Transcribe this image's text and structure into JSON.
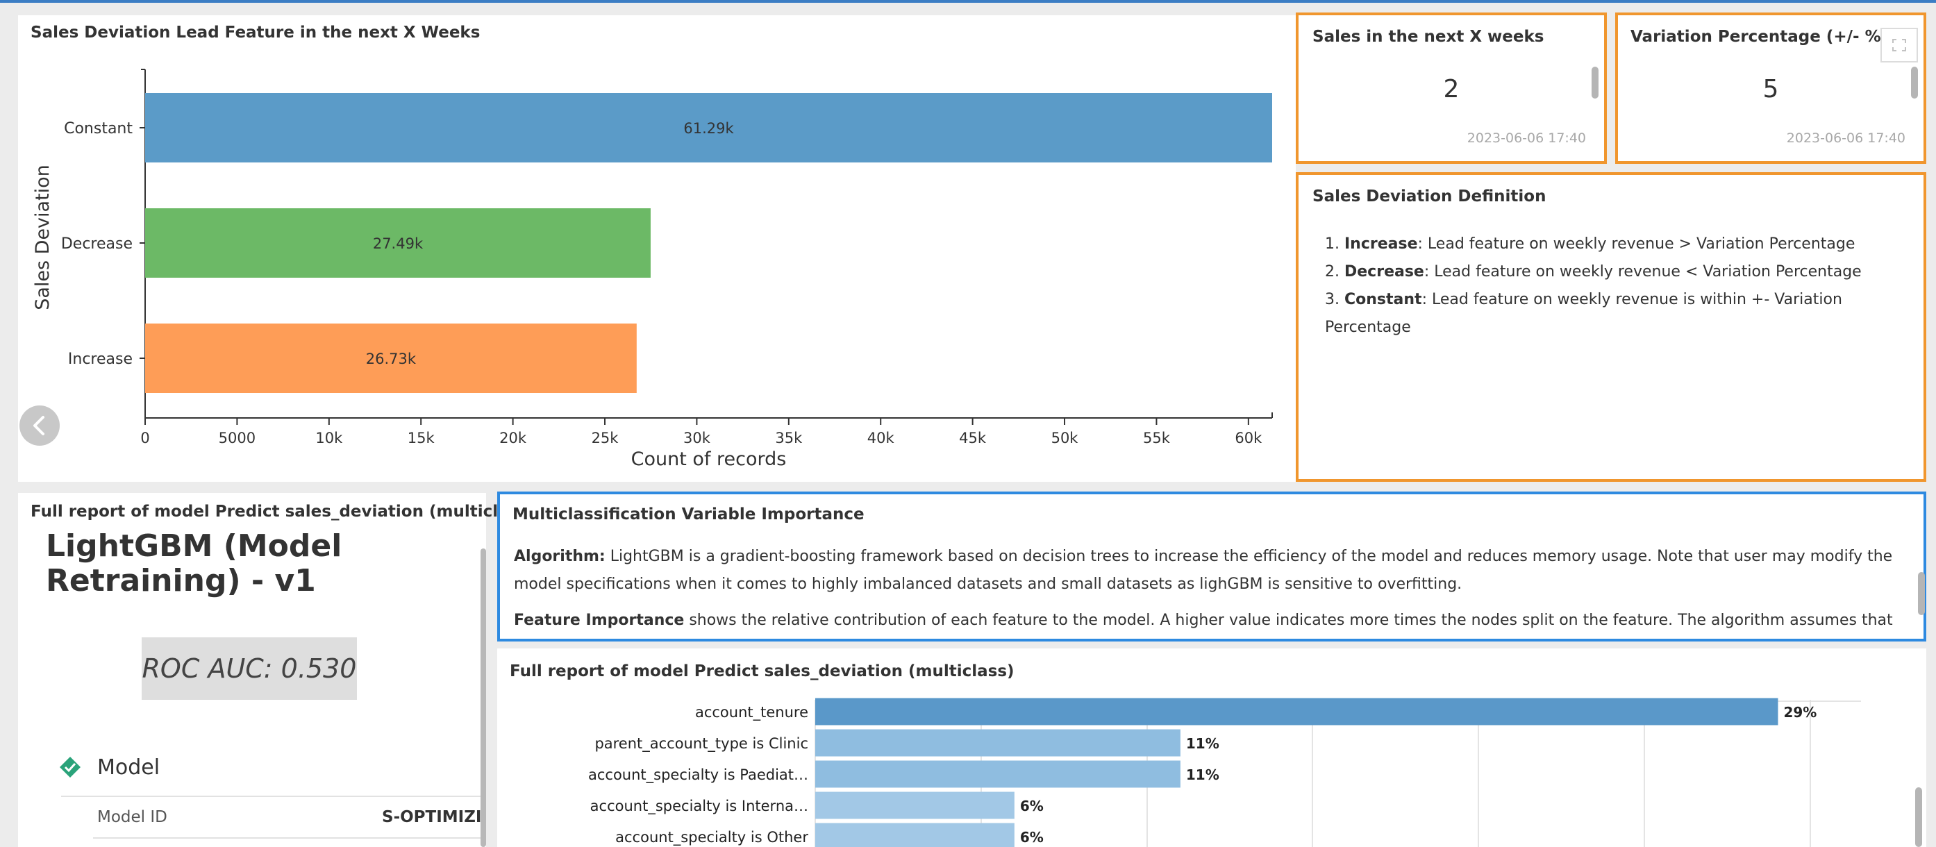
{
  "bar_panel": {
    "title": "Sales Deviation Lead Feature in the next X Weeks",
    "chart_data": {
      "type": "bar",
      "orientation": "horizontal",
      "categories": [
        "Constant",
        "Decrease",
        "Increase"
      ],
      "values": [
        61290,
        27490,
        26730
      ],
      "value_labels": [
        "61.29k",
        "27.49k",
        "26.73k"
      ],
      "colors": [
        "#5b9bc8",
        "#6cb966",
        "#fe9d57"
      ],
      "xlabel": "Count of records",
      "ylabel": "Sales Deviation",
      "xlim": [
        0,
        61290
      ],
      "xticks": [
        0,
        5000,
        10000,
        15000,
        20000,
        25000,
        30000,
        35000,
        40000,
        45000,
        50000,
        55000,
        60000
      ],
      "xtick_labels": [
        "0",
        "5000",
        "10k",
        "15k",
        "20k",
        "25k",
        "30k",
        "35k",
        "40k",
        "45k",
        "50k",
        "55k",
        "60k"
      ],
      "grid": false,
      "legend": "none"
    }
  },
  "metric_weeks": {
    "title": "Sales in the next X weeks",
    "value": "2",
    "timestamp": "2023-06-06 17:40"
  },
  "metric_variation": {
    "title": "Variation Percentage (+/- %)",
    "value": "5",
    "timestamp": "2023-06-06 17:40",
    "expand_icon": "expand-icon"
  },
  "definition": {
    "title": "Sales Deviation Definition",
    "items": [
      {
        "num": "1.",
        "term": "Increase",
        "text": ": Lead feature on weekly revenue > Variation Percentage"
      },
      {
        "num": "2.",
        "term": "Decrease",
        "text": ": Lead feature on weekly revenue < Variation Percentage"
      },
      {
        "num": "3.",
        "term": "Constant",
        "text": ": Lead feature on weekly revenue is within +- Variation Percentage"
      }
    ]
  },
  "report_left": {
    "title": "Full report of model Predict sales_deviation (multiclass)",
    "model_name": "LightGBM (Model Retraining) - v1",
    "roc": "ROC AUC: 0.530",
    "section": "Model",
    "section_icon": "model-icon",
    "model_id_label": "Model ID",
    "model_id_value": "S-OPTIMIZI"
  },
  "importance_text": {
    "title": "Multiclassification Variable Importance",
    "algorithm_label": "Algorithm:",
    "algorithm_text": " LightGBM is a gradient-boosting framework based on decision trees to increase the efficiency of the model and reduces memory usage. Note that user may modify the model specifications when it comes to highly imbalanced datasets and small datasets as lighGBM is sensitive to overfitting.",
    "feature_label": "Feature Importance",
    "feature_text": " shows the relative contribution of each feature to the model. A higher value indicates more times the nodes split on the feature. The algorithm assumes that the"
  },
  "importance_chart": {
    "title": "Full report of model Predict sales_deviation (multiclass)",
    "chart_data": {
      "type": "bar",
      "orientation": "horizontal",
      "categories": [
        "account_tenure",
        "parent_account_type is Clinic",
        "account_specialty is Paediat…",
        "account_specialty is Interna…",
        "account_specialty is Other"
      ],
      "values": [
        29,
        11,
        11,
        6,
        6
      ],
      "value_labels": [
        "29%",
        "11%",
        "11%",
        "6%",
        "6%"
      ],
      "xlim": [
        0,
        31.5
      ],
      "colors": [
        "#5a98c9",
        "#8fbde0",
        "#8fbde0",
        "#a2c8e6",
        "#a2c8e6"
      ],
      "grid": true,
      "legend": "none"
    }
  },
  "nav": {
    "prev_icon": "chevron-left-icon"
  }
}
